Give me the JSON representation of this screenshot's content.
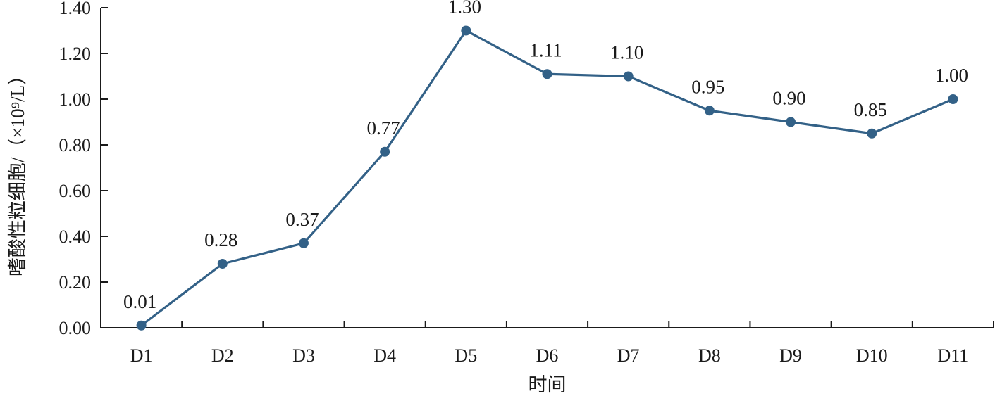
{
  "chart_data": {
    "type": "line",
    "categories": [
      "D1",
      "D2",
      "D3",
      "D4",
      "D5",
      "D6",
      "D7",
      "D8",
      "D9",
      "D10",
      "D11"
    ],
    "series": [
      {
        "values": [
          0.01,
          0.28,
          0.37,
          0.77,
          1.3,
          1.11,
          1.1,
          0.95,
          0.9,
          0.85,
          1.0
        ],
        "value_labels": [
          "0.01",
          "0.28",
          "0.37",
          "0.77",
          "1.30",
          "1.11",
          "1.10",
          "0.95",
          "0.90",
          "0.85",
          "1.00"
        ],
        "color": "#336187"
      }
    ],
    "xlabel": "时间",
    "ylabel": "嗜酸性粒细胞/（×10⁹/L）",
    "ylim": [
      0,
      1.4
    ],
    "yticks": [
      "0.00",
      "0.20",
      "0.40",
      "0.60",
      "0.80",
      "1.00",
      "1.20",
      "1.40"
    ],
    "grid": false,
    "axis_color": "#1a1a1a"
  }
}
